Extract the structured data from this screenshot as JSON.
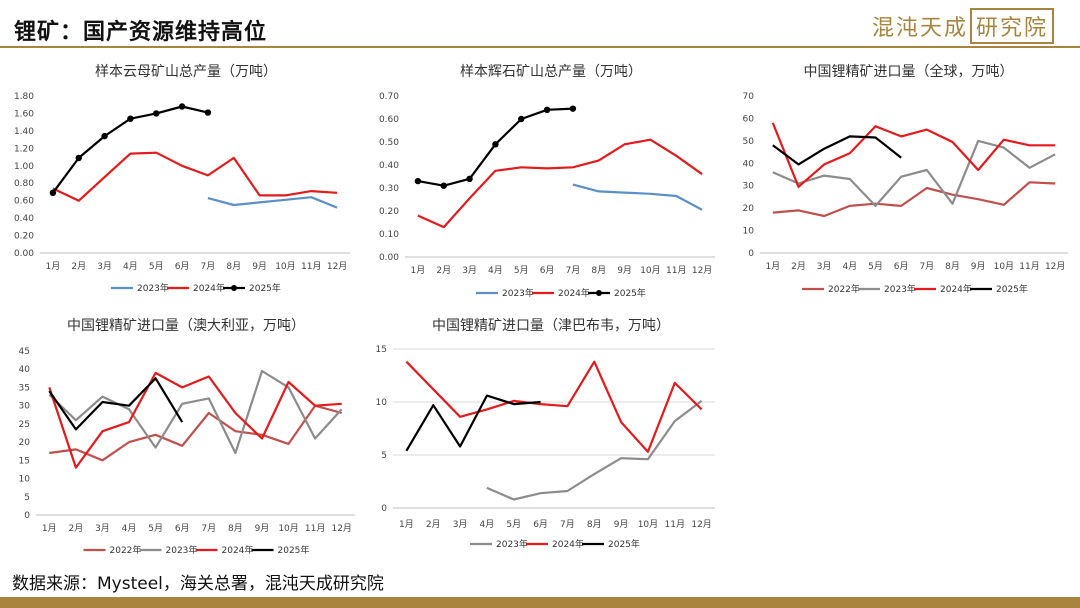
{
  "header": {
    "title": "锂矿：国产资源维持高位",
    "logo_text": "混沌天成",
    "logo_boxed": "研究院",
    "brand_color": "#a8843f"
  },
  "footer": {
    "source": "数据来源：Mysteel，海关总署，混沌天成研究院"
  },
  "colors": {
    "2022年": "#c0504d",
    "2023年": "#5b8fc7",
    "2023年_gray": "#8c8c8c",
    "2024年": "#e41a1c",
    "2025年": "#000000"
  },
  "chart_data": [
    {
      "type": "line",
      "title": "样本云母矿山总产量（万吨）",
      "categories": [
        "1月",
        "2月",
        "3月",
        "4月",
        "5月",
        "6月",
        "7月",
        "8月",
        "9月",
        "10月",
        "11月",
        "12月"
      ],
      "ylim": [
        0,
        1.8
      ],
      "yticks": [
        "0.00",
        "0.20",
        "0.40",
        "0.60",
        "0.80",
        "1.00",
        "1.20",
        "1.40",
        "1.60",
        "1.80"
      ],
      "grid": false,
      "legend": "bottom",
      "series": [
        {
          "name": "2023年",
          "color": "#5b8fc7",
          "markers": false,
          "values": [
            null,
            null,
            null,
            null,
            null,
            null,
            0.63,
            0.55,
            0.58,
            0.61,
            0.64,
            0.52
          ]
        },
        {
          "name": "2024年",
          "color": "#e41a1c",
          "markers": false,
          "values": [
            0.74,
            0.6,
            0.87,
            1.14,
            1.15,
            1.0,
            0.89,
            1.09,
            0.66,
            0.66,
            0.71,
            0.69
          ]
        },
        {
          "name": "2025年",
          "color": "#000000",
          "markers": true,
          "values": [
            0.69,
            1.09,
            1.34,
            1.54,
            1.6,
            1.68,
            1.61,
            null,
            null,
            null,
            null,
            null
          ]
        }
      ]
    },
    {
      "type": "line",
      "title": "样本辉石矿山总产量（万吨）",
      "categories": [
        "1月",
        "2月",
        "3月",
        "4月",
        "5月",
        "6月",
        "7月",
        "8月",
        "9月",
        "10月",
        "11月",
        "12月"
      ],
      "ylim": [
        0,
        0.7
      ],
      "yticks": [
        "0.00",
        "0.10",
        "0.20",
        "0.30",
        "0.40",
        "0.50",
        "0.60",
        "0.70"
      ],
      "grid": false,
      "legend": "bottom",
      "series": [
        {
          "name": "2023年",
          "color": "#5b8fc7",
          "markers": false,
          "values": [
            null,
            null,
            null,
            null,
            null,
            null,
            0.315,
            0.285,
            0.28,
            0.275,
            0.265,
            0.205
          ]
        },
        {
          "name": "2024年",
          "color": "#e41a1c",
          "markers": false,
          "values": [
            0.18,
            0.13,
            0.255,
            0.375,
            0.39,
            0.385,
            0.39,
            0.42,
            0.49,
            0.51,
            0.44,
            0.36
          ]
        },
        {
          "name": "2025年",
          "color": "#000000",
          "markers": true,
          "values": [
            0.33,
            0.31,
            0.34,
            0.49,
            0.6,
            0.64,
            0.645,
            null,
            null,
            null,
            null,
            null
          ]
        }
      ]
    },
    {
      "type": "line",
      "title": "中国锂精矿进口量（全球，万吨）",
      "categories": [
        "1月",
        "2月",
        "3月",
        "4月",
        "5月",
        "6月",
        "7月",
        "8月",
        "9月",
        "10月",
        "11月",
        "12月"
      ],
      "ylim": [
        0,
        70
      ],
      "yticks": [
        "0",
        "10",
        "20",
        "30",
        "40",
        "50",
        "60",
        "70"
      ],
      "grid": false,
      "legend": "bottom",
      "series": [
        {
          "name": "2022年",
          "color": "#c0504d",
          "markers": false,
          "values": [
            18,
            19,
            16.5,
            21,
            22,
            21,
            29,
            26,
            24,
            21.5,
            31.5,
            31
          ]
        },
        {
          "name": "2023年",
          "color": "#8c8c8c",
          "markers": false,
          "values": [
            36,
            31,
            34.5,
            33,
            21,
            34,
            37,
            22,
            50,
            47,
            38,
            44
          ]
        },
        {
          "name": "2024年",
          "color": "#e41a1c",
          "markers": false,
          "values": [
            58,
            29.5,
            39.5,
            44.5,
            56.5,
            52,
            55,
            49.5,
            37,
            50.5,
            48,
            48
          ]
        },
        {
          "name": "2025年",
          "color": "#000000",
          "markers": false,
          "values": [
            48,
            39.5,
            46.5,
            52,
            51.5,
            42.5,
            null,
            null,
            null,
            null,
            null,
            null
          ]
        }
      ]
    },
    {
      "type": "line",
      "title": "中国锂精矿进口量（澳大利亚，万吨）",
      "categories": [
        "1月",
        "2月",
        "3月",
        "4月",
        "5月",
        "6月",
        "7月",
        "8月",
        "9月",
        "10月",
        "11月",
        "12月"
      ],
      "ylim": [
        0,
        45
      ],
      "yticks": [
        "0",
        "5",
        "10",
        "15",
        "20",
        "25",
        "30",
        "35",
        "40",
        "45"
      ],
      "grid": false,
      "legend": "bottom",
      "series": [
        {
          "name": "2022年",
          "color": "#c0504d",
          "markers": false,
          "values": [
            17,
            18,
            15,
            20,
            22,
            19,
            28,
            23,
            22,
            19.5,
            30,
            28
          ]
        },
        {
          "name": "2023年",
          "color": "#8c8c8c",
          "markers": false,
          "values": [
            33,
            26,
            32.5,
            29,
            18.5,
            30.5,
            32,
            17,
            39.5,
            35,
            21,
            29
          ]
        },
        {
          "name": "2024年",
          "color": "#e41a1c",
          "markers": false,
          "values": [
            35,
            13,
            23,
            25.5,
            39,
            35,
            38,
            28,
            21,
            36.5,
            30,
            30.5
          ]
        },
        {
          "name": "2025年",
          "color": "#000000",
          "markers": false,
          "values": [
            34,
            23.5,
            31,
            30,
            37.5,
            25.5,
            null,
            null,
            null,
            null,
            null,
            null
          ]
        }
      ]
    },
    {
      "type": "line",
      "title": "中国锂精矿进口量（津巴布韦，万吨）",
      "categories": [
        "1月",
        "2月",
        "3月",
        "4月",
        "5月",
        "6月",
        "7月",
        "8月",
        "9月",
        "10月",
        "11月",
        "12月"
      ],
      "ylim": [
        0,
        15
      ],
      "yticks": [
        "0",
        "5",
        "10",
        "15"
      ],
      "grid": true,
      "legend": "bottom",
      "series": [
        {
          "name": "2023年",
          "color": "#8c8c8c",
          "markers": false,
          "values": [
            null,
            null,
            null,
            1.9,
            0.8,
            1.4,
            1.6,
            3.2,
            4.7,
            4.6,
            8.2,
            10.1
          ]
        },
        {
          "name": "2024年",
          "color": "#e41a1c",
          "markers": false,
          "values": [
            13.8,
            11.2,
            8.6,
            9.3,
            10.1,
            9.8,
            9.6,
            13.8,
            8.1,
            5.3,
            11.8,
            9.3
          ]
        },
        {
          "name": "2025年",
          "color": "#000000",
          "markers": false,
          "values": [
            5.4,
            9.7,
            5.8,
            10.6,
            9.8,
            10.0,
            null,
            null,
            null,
            null,
            null,
            null
          ]
        }
      ]
    }
  ]
}
